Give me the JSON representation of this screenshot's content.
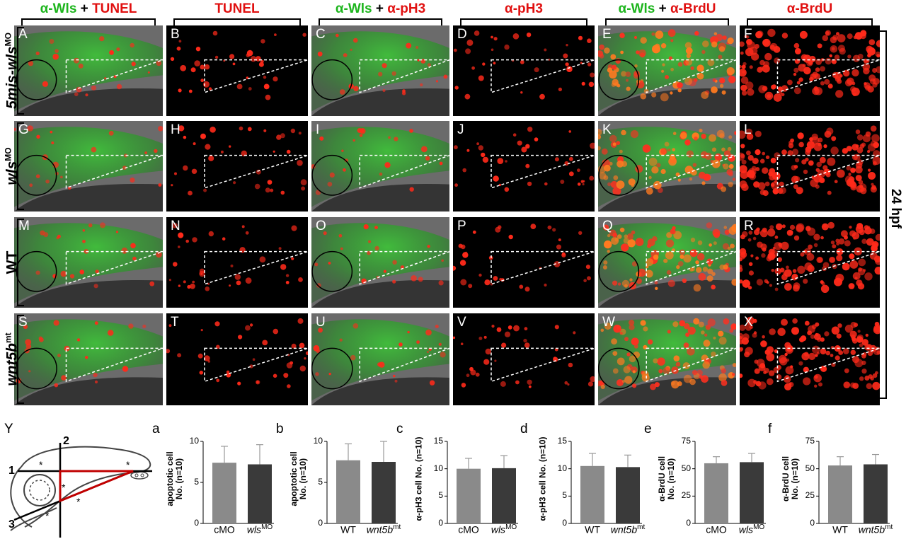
{
  "columns": [
    {
      "parts": [
        {
          "text": "α-Wls",
          "color": "green"
        },
        {
          "text": " + ",
          "color": "black"
        },
        {
          "text": "TUNEL",
          "color": "red"
        }
      ]
    },
    {
      "parts": [
        {
          "text": "TUNEL",
          "color": "red"
        }
      ]
    },
    {
      "parts": [
        {
          "text": "α-Wls",
          "color": "green"
        },
        {
          "text": " + ",
          "color": "black"
        },
        {
          "text": "α-pH3",
          "color": "red"
        }
      ]
    },
    {
      "parts": [
        {
          "text": "α-pH3",
          "color": "red"
        }
      ]
    },
    {
      "parts": [
        {
          "text": "α-Wls",
          "color": "green"
        },
        {
          "text": " + ",
          "color": "black"
        },
        {
          "text": "α-BrdU",
          "color": "red"
        }
      ]
    },
    {
      "parts": [
        {
          "text": "α-BrdU",
          "color": "red"
        }
      ]
    }
  ],
  "rows": [
    {
      "label": "5mis-wls",
      "sup": "MO",
      "panels": [
        "A",
        "B",
        "C",
        "D",
        "E",
        "F"
      ]
    },
    {
      "label": "wls",
      "sup": "MO",
      "panels": [
        "G",
        "H",
        "I",
        "J",
        "K",
        "L"
      ]
    },
    {
      "label": "WT",
      "sup": "",
      "panels": [
        "M",
        "N",
        "O",
        "P",
        "Q",
        "R"
      ]
    },
    {
      "label": "wnt5b",
      "sup": "mt",
      "panels": [
        "S",
        "T",
        "U",
        "V",
        "W",
        "X"
      ]
    }
  ],
  "timepoint": "24 hpf",
  "schematic": {
    "label": "Y",
    "lines": [
      "1",
      "2",
      "3"
    ],
    "marker": "*"
  },
  "charts": [
    {
      "label": "a",
      "ylabel_1": "apoptotic cell",
      "ylabel_2": "No. (n=10)",
      "yticks": [
        "0",
        "5",
        "10"
      ],
      "ymax": 10,
      "categories": [
        {
          "text": "cMO",
          "sup": ""
        },
        {
          "text": "wls",
          "sup": "MO"
        }
      ],
      "values": [
        7.4,
        7.2
      ],
      "errors": [
        2.0,
        2.4
      ]
    },
    {
      "label": "b",
      "ylabel_1": "apoptotic cell",
      "ylabel_2": "No. (n=10)",
      "yticks": [
        "0",
        "5",
        "10"
      ],
      "ymax": 10,
      "categories": [
        {
          "text": "WT",
          "sup": ""
        },
        {
          "text": "wnt5b",
          "sup": "mt"
        }
      ],
      "values": [
        7.7,
        7.5
      ],
      "errors": [
        2.0,
        2.5
      ]
    },
    {
      "label": "c",
      "ylabel_1": "α-pH3 cell No. (n=10)",
      "ylabel_2": "",
      "yticks": [
        "0",
        "5",
        "10",
        "15"
      ],
      "ymax": 15,
      "categories": [
        {
          "text": "cMO",
          "sup": ""
        },
        {
          "text": "wls",
          "sup": "MO"
        }
      ],
      "values": [
        10,
        10.1
      ],
      "errors": [
        1.9,
        2.3
      ]
    },
    {
      "label": "d",
      "ylabel_1": "α-pH3 cell No. (n=10)",
      "ylabel_2": "",
      "yticks": [
        "0",
        "5",
        "10",
        "15"
      ],
      "ymax": 15,
      "categories": [
        {
          "text": "WT",
          "sup": ""
        },
        {
          "text": "wnt5b",
          "sup": "mt"
        }
      ],
      "values": [
        10.5,
        10.3
      ],
      "errors": [
        2.3,
        2.2
      ]
    },
    {
      "label": "e",
      "ylabel_1": "α-BrdU cell",
      "ylabel_2": "No. (n=10)",
      "yticks": [
        "0",
        "25",
        "50",
        "75"
      ],
      "ymax": 75,
      "categories": [
        {
          "text": "cMO",
          "sup": ""
        },
        {
          "text": "wls",
          "sup": "MO"
        }
      ],
      "values": [
        55,
        56
      ],
      "errors": [
        6,
        8
      ]
    },
    {
      "label": "f",
      "ylabel_1": "α-BrdU cell",
      "ylabel_2": "No. (n=10)",
      "yticks": [
        "0",
        "25",
        "50",
        "75"
      ],
      "ymax": 75,
      "categories": [
        {
          "text": "WT",
          "sup": ""
        },
        {
          "text": "wnt5b",
          "sup": "mt"
        }
      ],
      "values": [
        53,
        54
      ],
      "errors": [
        8,
        9
      ]
    }
  ],
  "chart_data": [
    {
      "type": "bar",
      "label": "a",
      "categories": [
        "cMO",
        "wlsMO"
      ],
      "values": [
        7.4,
        7.2
      ],
      "error": [
        2.0,
        2.4
      ],
      "ylabel": "apoptotic cell No. (n=10)",
      "ylim": [
        0,
        10
      ]
    },
    {
      "type": "bar",
      "label": "b",
      "categories": [
        "WT",
        "wnt5bmt"
      ],
      "values": [
        7.7,
        7.5
      ],
      "error": [
        2.0,
        2.5
      ],
      "ylabel": "apoptotic cell No. (n=10)",
      "ylim": [
        0,
        10
      ]
    },
    {
      "type": "bar",
      "label": "c",
      "categories": [
        "cMO",
        "wlsMO"
      ],
      "values": [
        10,
        10.1
      ],
      "error": [
        1.9,
        2.3
      ],
      "ylabel": "α-pH3 cell No. (n=10)",
      "ylim": [
        0,
        15
      ]
    },
    {
      "type": "bar",
      "label": "d",
      "categories": [
        "WT",
        "wnt5bmt"
      ],
      "values": [
        10.5,
        10.3
      ],
      "error": [
        2.3,
        2.2
      ],
      "ylabel": "α-pH3 cell No. (n=10)",
      "ylim": [
        0,
        15
      ]
    },
    {
      "type": "bar",
      "label": "e",
      "categories": [
        "cMO",
        "wlsMO"
      ],
      "values": [
        55,
        56
      ],
      "error": [
        6,
        8
      ],
      "ylabel": "α-BrdU cell No. (n=10)",
      "ylim": [
        0,
        75
      ]
    },
    {
      "type": "bar",
      "label": "f",
      "categories": [
        "WT",
        "wnt5bmt"
      ],
      "values": [
        53,
        54
      ],
      "error": [
        8,
        9
      ],
      "ylabel": "α-BrdU cell No. (n=10)",
      "ylim": [
        0,
        75
      ]
    }
  ],
  "colors": {
    "green": "#1db51d",
    "red": "#e01010",
    "bar_light": "#8a8a8a",
    "bar_dark": "#3a3a3a",
    "triangle_red": "#c00000"
  }
}
